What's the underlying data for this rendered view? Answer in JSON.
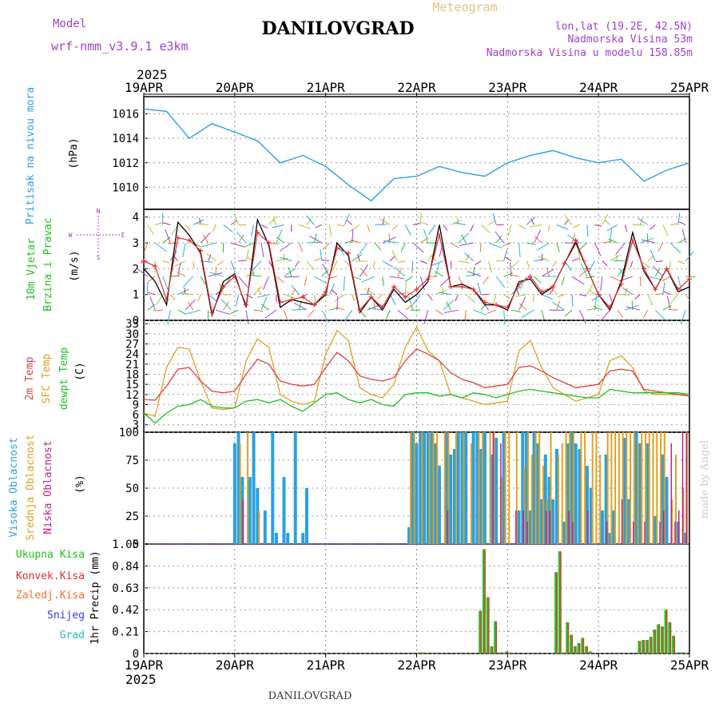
{
  "header": {
    "model_label": "Model",
    "model_value": "wrf-nmm_v3.9.1  e3km",
    "city": "DANILOVGRAD",
    "meteogram": "Meteogram",
    "lonlat": "lon,lat (19.2E, 42.5N)",
    "station_elev": "Nadmorska Visina 53m",
    "model_elev": "Nadmorska Visina u modelu 158.85m"
  },
  "time_axis": {
    "year_top": "2025",
    "year_bottom": "2025",
    "labels": [
      "19APR",
      "20APR",
      "21APR",
      "22APR",
      "23APR",
      "24APR",
      "25APR"
    ]
  },
  "footer": {
    "city": "DANILOVGRAD"
  },
  "credit": "made by Angel",
  "colors": {
    "pressure": "#2aa0e0",
    "wind_black": "#000000",
    "wind_red": "#e03030",
    "temp2m": "#e04040",
    "sfc": "#e0a020",
    "dewpt": "#20c020",
    "high_cloud": "#2aa0e0",
    "mid_cloud": "#e0a020",
    "low_cloud": "#c0208a",
    "precip_total": "#20c020",
    "precip_conv": "#e03030",
    "precip_frz": "#f07030",
    "precip_snow": "#3040e0",
    "precip_grad": "#20c0c0",
    "purple": "#a040d0"
  },
  "chart_data": [
    {
      "type": "line",
      "name": "pressure",
      "ylabel": "Pritisak na nivou mora",
      "units": "(hPa)",
      "ylim": [
        1008.2,
        1017.4
      ],
      "yticks": [
        1010,
        1012,
        1014,
        1016
      ],
      "x": [
        0,
        6,
        12,
        18,
        24,
        30,
        36,
        42,
        48,
        54,
        60,
        66,
        72,
        78,
        84,
        90,
        96,
        102,
        108,
        114,
        120,
        126,
        132,
        138,
        144
      ],
      "values": [
        1016.4,
        1016.2,
        1014.0,
        1015.2,
        1014.5,
        1013.8,
        1012.0,
        1012.6,
        1011.7,
        1010.2,
        1008.9,
        1010.7,
        1010.9,
        1011.7,
        1011.2,
        1010.9,
        1012.0,
        1012.6,
        1013.0,
        1012.4,
        1012.0,
        1012.3,
        1010.5,
        1011.4,
        1012.0
      ]
    },
    {
      "type": "line",
      "name": "wind",
      "ylabel": "10m Vjetar",
      "ylabel2": "Brzina i Pravac",
      "units": "(m/s)",
      "compass": {
        "n": "N",
        "s": "S",
        "e": "E",
        "w": "W"
      },
      "ylim": [
        0,
        4.3
      ],
      "yticks": [
        0,
        1,
        2,
        3,
        4
      ],
      "x": [
        0,
        3,
        6,
        9,
        12,
        15,
        18,
        21,
        24,
        27,
        30,
        33,
        36,
        39,
        42,
        45,
        48,
        51,
        54,
        57,
        60,
        63,
        66,
        69,
        72,
        75,
        78,
        81,
        84,
        87,
        90,
        93,
        96,
        99,
        102,
        105,
        108,
        111,
        114,
        117,
        120,
        123,
        126,
        129,
        132,
        135,
        138,
        141,
        144
      ],
      "series": [
        {
          "name": "black",
          "values": [
            2.0,
            1.5,
            0.6,
            3.8,
            3.3,
            2.6,
            0.2,
            1.5,
            1.8,
            0.5,
            3.9,
            2.9,
            0.5,
            0.8,
            0.7,
            0.6,
            1.0,
            3.0,
            2.5,
            0.3,
            0.9,
            0.4,
            1.2,
            0.7,
            1.0,
            1.5,
            3.7,
            1.3,
            1.4,
            1.2,
            0.6,
            0.6,
            0.4,
            1.5,
            1.6,
            1.0,
            1.3,
            2.2,
            3.0,
            2.0,
            1.0,
            0.4,
            1.5,
            3.4,
            1.9,
            1.2,
            2.0,
            1.1,
            1.3
          ]
        },
        {
          "name": "red",
          "values": [
            2.3,
            2.1,
            0.8,
            3.2,
            3.1,
            2.7,
            0.3,
            1.3,
            1.7,
            0.6,
            3.4,
            3.0,
            0.7,
            0.8,
            0.9,
            0.6,
            1.1,
            2.8,
            2.6,
            0.4,
            0.9,
            0.5,
            1.3,
            0.9,
            1.2,
            1.6,
            3.3,
            1.3,
            1.3,
            1.2,
            0.7,
            0.6,
            0.5,
            1.4,
            1.7,
            1.1,
            1.3,
            2.2,
            3.1,
            2.0,
            1.0,
            0.5,
            1.4,
            3.1,
            2.0,
            1.2,
            2.0,
            1.2,
            1.6
          ]
        }
      ]
    },
    {
      "type": "line",
      "name": "temperature",
      "ylabel": "2m Temp",
      "ylabel2": "SFC Temp",
      "ylabel3": "dewpt Temp",
      "units": "(C)",
      "ylim": [
        0.8,
        34
      ],
      "yticks": [
        3,
        6,
        9,
        12,
        15,
        18,
        21,
        24,
        27,
        30,
        33
      ],
      "x": [
        0,
        3,
        6,
        9,
        12,
        15,
        18,
        21,
        24,
        27,
        30,
        33,
        36,
        39,
        42,
        45,
        48,
        51,
        54,
        57,
        60,
        63,
        66,
        69,
        72,
        75,
        78,
        81,
        84,
        87,
        90,
        93,
        96,
        99,
        102,
        105,
        108,
        111,
        114,
        117,
        120,
        123,
        126,
        129,
        132,
        135,
        138,
        141,
        144
      ],
      "series": [
        {
          "name": "2m Temp",
          "values": [
            10.5,
            10.3,
            14.5,
            19.5,
            20.0,
            16.0,
            13.0,
            12.5,
            13.0,
            18.0,
            22.5,
            21.0,
            16.0,
            15.0,
            14.5,
            15.0,
            20.0,
            24.5,
            22.0,
            17.5,
            16.5,
            16.0,
            17.0,
            22.0,
            25.5,
            24.0,
            22.0,
            18.5,
            16.5,
            15.5,
            14.0,
            14.5,
            15.0,
            20.0,
            20.5,
            19.0,
            17.0,
            15.5,
            14.0,
            14.5,
            15.0,
            19.0,
            19.5,
            19.0,
            13.5,
            13.0,
            12.5,
            12.0,
            11.5
          ]
        },
        {
          "name": "SFC Temp",
          "values": [
            6.5,
            5.5,
            20.0,
            26.0,
            25.5,
            16.0,
            8.0,
            7.5,
            8.0,
            22.0,
            28.5,
            26.0,
            12.0,
            10.0,
            9.0,
            10.0,
            24.0,
            31.0,
            28.0,
            14.0,
            12.0,
            11.0,
            15.0,
            26.0,
            32.0,
            25.0,
            22.0,
            12.0,
            11.0,
            10.0,
            9.0,
            9.5,
            10.0,
            25.0,
            28.0,
            20.0,
            14.0,
            12.0,
            10.0,
            11.0,
            12.0,
            22.0,
            23.5,
            20.0,
            13.0,
            12.0,
            12.0,
            12.0,
            12.0
          ]
        },
        {
          "name": "dewpt Temp",
          "values": [
            6.5,
            3.5,
            6.5,
            8.5,
            9.0,
            10.5,
            8.5,
            8.0,
            8.0,
            10.0,
            10.5,
            9.5,
            10.5,
            8.5,
            7.0,
            9.5,
            12.0,
            12.5,
            10.5,
            9.5,
            10.5,
            9.0,
            8.5,
            12.0,
            12.5,
            12.5,
            11.5,
            12.0,
            11.0,
            12.5,
            12.0,
            11.0,
            12.0,
            13.0,
            13.5,
            13.0,
            12.5,
            12.0,
            11.5,
            11.0,
            11.0,
            13.5,
            13.0,
            12.5,
            12.5,
            12.5,
            12.5,
            12.5,
            12.0
          ]
        }
      ]
    },
    {
      "type": "bar",
      "name": "cloud",
      "ylabel": "Visoka Oblacnost",
      "ylabel2": "Srednja Oblacnost",
      "ylabel3": "Niska Oblacnost",
      "units": "(%)",
      "ylim": [
        0,
        100
      ],
      "yticks": [
        0,
        25,
        50,
        75,
        100
      ],
      "series": [
        {
          "name": "Visoka",
          "x": [
            24,
            25,
            26,
            28,
            29,
            30,
            32,
            34,
            35,
            37,
            38,
            40,
            42,
            43,
            70,
            71,
            72,
            73,
            74,
            75,
            76,
            77,
            78,
            80,
            81,
            82,
            83,
            84,
            85,
            87,
            88,
            89,
            90,
            92,
            93,
            95,
            99,
            100,
            101,
            102,
            103,
            104,
            105,
            106,
            107,
            108,
            109,
            111,
            112,
            113,
            114,
            115,
            117,
            118,
            121,
            122,
            123,
            124,
            127,
            128,
            130,
            131,
            133,
            135,
            137,
            138,
            141,
            143
          ],
          "values": [
            90,
            100,
            60,
            60,
            100,
            50,
            30,
            100,
            10,
            60,
            10,
            100,
            10,
            50,
            15,
            100,
            90,
            100,
            100,
            100,
            100,
            90,
            70,
            100,
            80,
            85,
            100,
            100,
            100,
            100,
            100,
            85,
            100,
            80,
            95,
            100,
            30,
            100,
            100,
            30,
            100,
            90,
            40,
            80,
            60,
            40,
            85,
            20,
            90,
            100,
            90,
            85,
            70,
            50,
            30,
            80,
            10,
            30,
            95,
            40,
            100,
            90,
            90,
            25,
            80,
            60,
            20,
            10
          ]
        },
        {
          "name": "Srednja",
          "x": [
            25,
            27,
            30,
            70,
            71,
            73,
            75,
            76,
            77,
            79,
            80,
            82,
            84,
            86,
            88,
            89,
            91,
            92,
            94,
            95,
            96,
            98,
            100,
            101,
            102,
            103,
            104,
            105,
            106,
            107,
            109,
            110,
            111,
            112,
            113,
            115,
            116,
            118,
            119,
            120,
            122,
            123,
            124,
            125,
            126,
            127,
            128,
            129,
            130,
            131,
            132,
            133,
            134,
            135,
            136,
            137,
            139,
            140,
            142,
            143
          ],
          "values": [
            90,
            100,
            30,
            100,
            100,
            100,
            100,
            100,
            100,
            100,
            100,
            100,
            100,
            90,
            100,
            100,
            100,
            100,
            60,
            100,
            100,
            100,
            70,
            100,
            80,
            100,
            100,
            70,
            40,
            100,
            80,
            90,
            100,
            100,
            100,
            100,
            100,
            100,
            100,
            80,
            100,
            100,
            100,
            100,
            100,
            100,
            100,
            100,
            90,
            100,
            100,
            100,
            100,
            100,
            100,
            100,
            40,
            80,
            50,
            100
          ]
        },
        {
          "name": "Niska",
          "x": [
            26,
            80,
            92,
            94,
            98,
            100,
            101,
            106,
            107,
            112,
            113,
            117,
            122,
            126,
            129,
            132,
            136,
            137,
            139,
            140,
            141,
            142,
            143
          ],
          "values": [
            40,
            30,
            100,
            90,
            30,
            30,
            20,
            30,
            30,
            30,
            20,
            30,
            20,
            40,
            20,
            20,
            20,
            30,
            90,
            20,
            30,
            100,
            100
          ]
        }
      ]
    },
    {
      "type": "bar",
      "name": "precip",
      "ylabel": "1hr Precip",
      "units": "(mm)",
      "ylim": [
        0,
        1.05
      ],
      "yticks": [
        0,
        0.21,
        0.42,
        0.63,
        0.84,
        1.05
      ],
      "legend": [
        "Ukupna  Kisa",
        "Konvek.Kisa",
        "Zaledj.Kisa",
        "Snijeg",
        "Grad"
      ],
      "x": [
        73,
        74,
        89,
        90,
        91,
        92,
        93,
        94,
        95,
        96,
        97,
        109,
        110,
        111,
        112,
        113,
        114,
        115,
        116,
        117,
        118,
        131,
        132,
        133,
        134,
        135,
        136,
        137,
        138,
        139,
        140,
        141,
        142
      ],
      "values": [
        0.01,
        0.01,
        0.41,
        1.0,
        0.54,
        0.07,
        0.31,
        0.01,
        0.01,
        0.02,
        0.01,
        0.78,
        0.98,
        0.01,
        0.3,
        0.18,
        0.07,
        0.1,
        0.15,
        0.07,
        0.02,
        0.12,
        0.13,
        0.13,
        0.16,
        0.23,
        0.28,
        0.26,
        0.42,
        0.3,
        0.17,
        0.01,
        0.01
      ]
    }
  ]
}
